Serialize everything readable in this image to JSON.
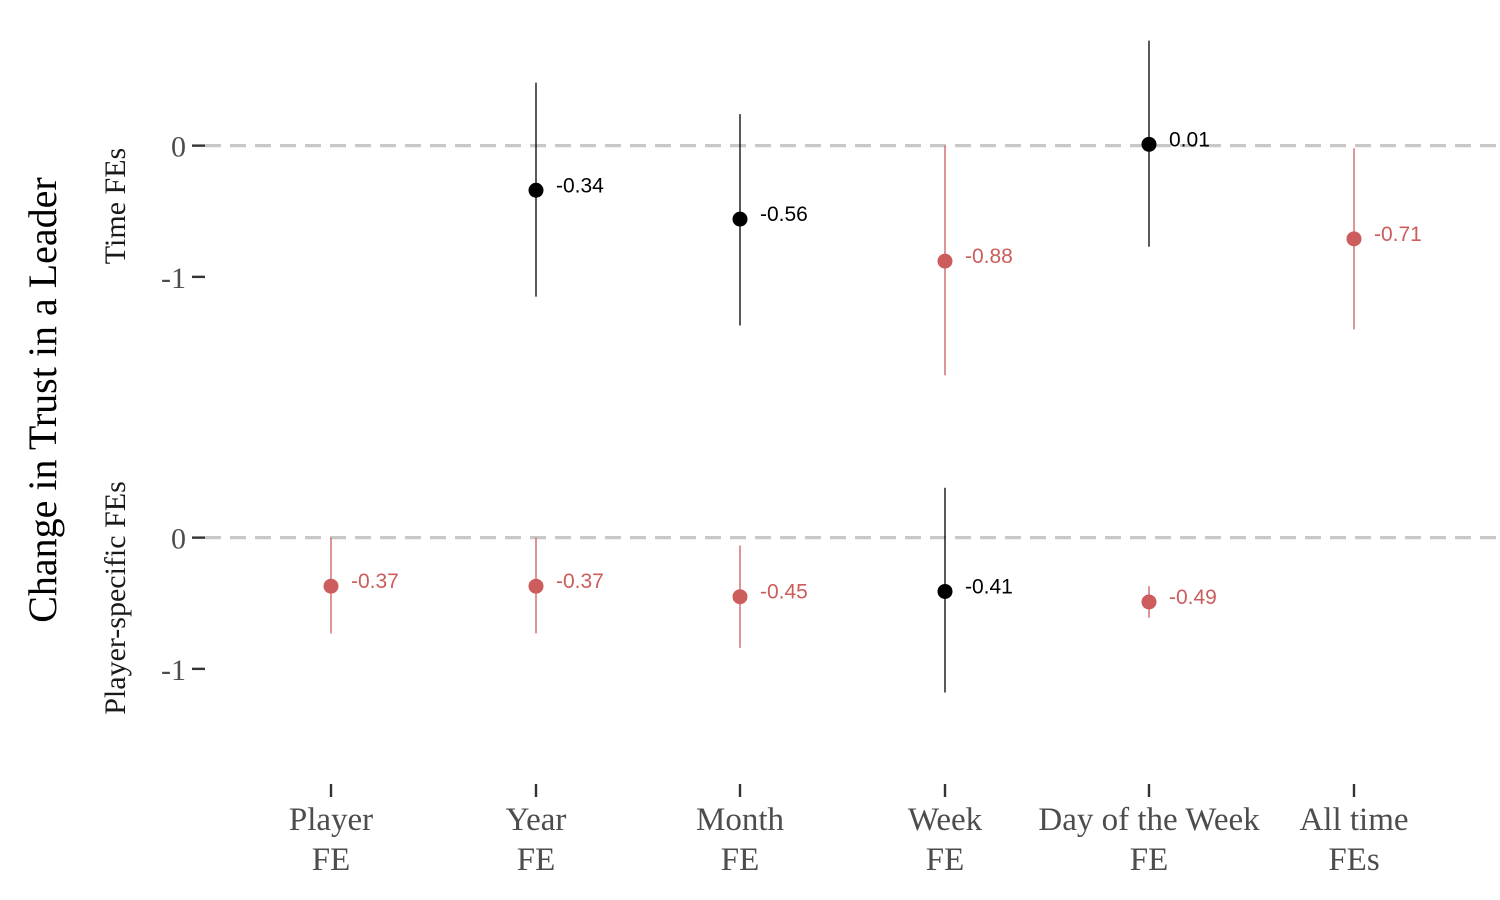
{
  "chart_data": {
    "type": "scatter",
    "ylabel": "Change in Trust in a Leader",
    "categories": [
      [
        "Player",
        "FE"
      ],
      [
        "Year",
        "FE"
      ],
      [
        "Month",
        "FE"
      ],
      [
        "Week",
        "FE"
      ],
      [
        "Day of the Week",
        "FE"
      ],
      [
        "All time",
        "FEs"
      ]
    ],
    "yticks": [
      0,
      -1
    ],
    "ytick_labels": [
      "0",
      "-1"
    ],
    "reference_line": 0,
    "grid": false,
    "colors": {
      "significant": "#CD5C5C",
      "not_significant": "#000000",
      "reference": "#C8C8C8",
      "axis_text": "#4D4D4D"
    },
    "panels": [
      {
        "label": "Time FEs",
        "ylim": [
          -1.58,
          0.82
        ],
        "points": [
          {
            "category": 1,
            "estimate": -0.34,
            "ci": [
              -1.15,
              0.48
            ],
            "label": "-0.34",
            "significant": false
          },
          {
            "category": 2,
            "estimate": -0.56,
            "ci": [
              -1.37,
              0.24
            ],
            "label": "-0.56",
            "significant": false
          },
          {
            "category": 3,
            "estimate": -0.88,
            "ci": [
              -1.75,
              0.0
            ],
            "label": "-0.88",
            "significant": true
          },
          {
            "category": 4,
            "estimate": 0.01,
            "ci": [
              -0.77,
              0.8
            ],
            "label": "0.01",
            "significant": false
          },
          {
            "category": 5,
            "estimate": -0.71,
            "ci": [
              -1.4,
              -0.02
            ],
            "label": "-0.71",
            "significant": true
          }
        ]
      },
      {
        "label": "Player-specific FEs",
        "ylim": [
          -1.58,
          0.82
        ],
        "points": [
          {
            "category": 0,
            "estimate": -0.37,
            "ci": [
              -0.73,
              0.0
            ],
            "label": "-0.37",
            "significant": true
          },
          {
            "category": 1,
            "estimate": -0.37,
            "ci": [
              -0.73,
              0.0
            ],
            "label": "-0.37",
            "significant": true
          },
          {
            "category": 2,
            "estimate": -0.45,
            "ci": [
              -0.84,
              -0.06
            ],
            "label": "-0.45",
            "significant": true
          },
          {
            "category": 3,
            "estimate": -0.41,
            "ci": [
              -1.18,
              0.38
            ],
            "label": "-0.41",
            "significant": false
          },
          {
            "category": 4,
            "estimate": -0.49,
            "ci": [
              -0.61,
              -0.37
            ],
            "label": "-0.49",
            "significant": true
          }
        ]
      }
    ]
  }
}
